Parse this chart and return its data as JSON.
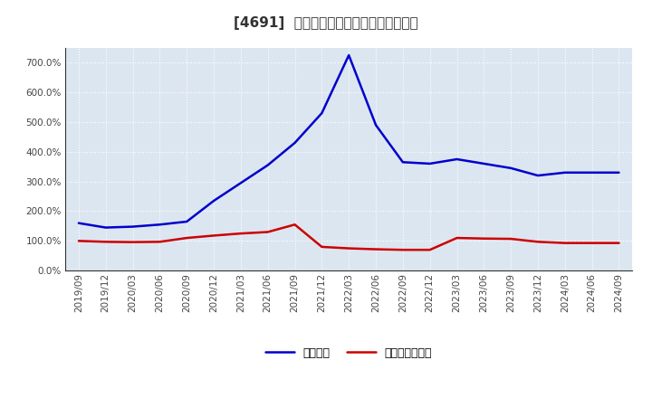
{
  "title": "[4691]  固定比率、固定長期適合率の推移",
  "x_labels": [
    "2019/09",
    "2019/12",
    "2020/03",
    "2020/06",
    "2020/09",
    "2020/12",
    "2021/03",
    "2021/06",
    "2021/09",
    "2021/12",
    "2022/03",
    "2022/06",
    "2022/09",
    "2022/12",
    "2023/03",
    "2023/06",
    "2023/09",
    "2023/12",
    "2024/03",
    "2024/06",
    "2024/09"
  ],
  "fixed_ratio": [
    160.0,
    145.0,
    148.0,
    155.0,
    165.0,
    235.0,
    295.0,
    355.0,
    430.0,
    530.0,
    725.0,
    490.0,
    365.0,
    360.0,
    375.0,
    360.0,
    345.0,
    320.0,
    330.0,
    330.0,
    330.0
  ],
  "fixed_long_ratio": [
    100.0,
    97.0,
    96.0,
    97.0,
    110.0,
    118.0,
    125.0,
    130.0,
    155.0,
    80.0,
    75.0,
    72.0,
    70.0,
    70.0,
    110.0,
    108.0,
    107.0,
    97.0,
    93.0,
    93.0,
    93.0
  ],
  "blue_color": "#0000cc",
  "red_color": "#cc0000",
  "bg_color": "#ffffff",
  "plot_bg_color": "#dce6f1",
  "grid_color": "#ffffff",
  "spine_color": "#333333",
  "ylim": [
    0,
    750
  ],
  "yticks": [
    0,
    100,
    200,
    300,
    400,
    500,
    600,
    700
  ],
  "legend_fixed_ratio": "固定比率",
  "legend_fixed_long_ratio": "固定長期適合率",
  "title_fontsize": 11,
  "tick_fontsize": 7.5,
  "legend_fontsize": 9
}
